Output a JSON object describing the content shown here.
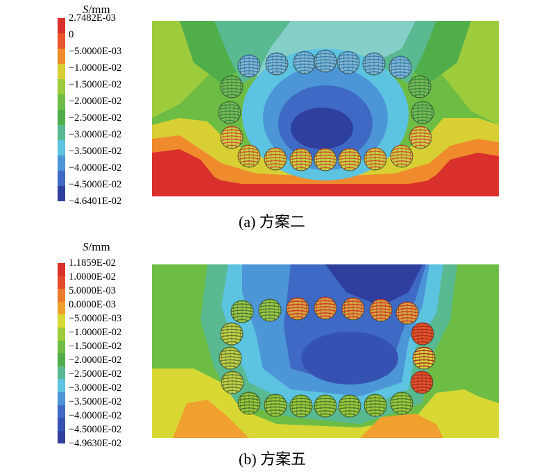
{
  "figures": [
    {
      "legend_title_var": "S",
      "legend_title_unit": "/mm",
      "ticks": [
        "2.7482E-03",
        "0",
        "−5.0000E-03",
        "−1.0000E-02",
        "−1.5000E-02",
        "−2.0000E-02",
        "−2.5000E-02",
        "−3.0000E-02",
        "−3.5000E-02",
        "−4.0000E-02",
        "−4.5000E-02",
        "−4.6401E-02"
      ],
      "caption": "(a) 方案二"
    },
    {
      "legend_title_var": "S",
      "legend_title_unit": "/mm",
      "ticks": [
        "1.1859E-02",
        "1.0000E-02",
        "5.0000E-03",
        "0.0000E-03",
        "−5.0000E-03",
        "−1.0000E-02",
        "−1.5000E-02",
        "−2.0000E-02",
        "−2.5000E-02",
        "−3.0000E-02",
        "−3.5000E-02",
        "−4.0000E-02",
        "−4.5000E-02",
        "−4.9630E-02"
      ],
      "caption": "(b) 方案五"
    }
  ],
  "colors": {
    "scale_a": [
      "#d9302b",
      "#e9552a",
      "#ef8a2d",
      "#d8cf34",
      "#9ccb3c",
      "#6dbd45",
      "#4fae4a",
      "#59b990",
      "#5cc3e0",
      "#4c95d7",
      "#3e69c4",
      "#2f3f9e"
    ],
    "scale_b": [
      "#d9302b",
      "#e24a2a",
      "#ec7a2c",
      "#efa02f",
      "#d8d835",
      "#9ccb3c",
      "#6dbd45",
      "#4fae4a",
      "#59b990",
      "#5cc3e0",
      "#4c95d7",
      "#3e69c4",
      "#3552b2",
      "#2f3f9e"
    ]
  }
}
